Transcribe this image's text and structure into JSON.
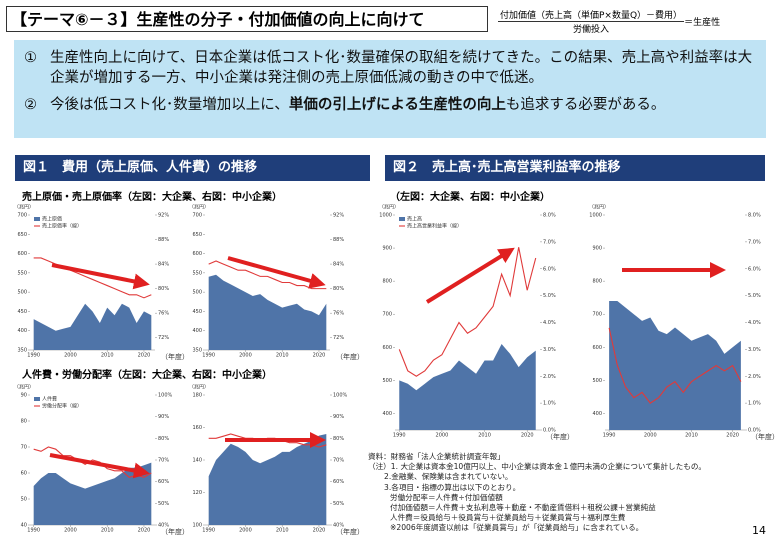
{
  "header": {
    "title": "【テーマ⑥－３】生産性の分子・付加価値の向上に向けて",
    "formula_numerator": "付加価値（売上高（単価P×数量Q）－費用）",
    "formula_denominator": "労働投入",
    "formula_result": "＝生産性"
  },
  "bullets": [
    {
      "marker": "①",
      "text": "生産性向上に向けて、日本企業は低コスト化･数量確保の取組を続けてきた。この結果、売上高や利益率は大企業が増加する一方、中小企業は発注側の売上原価低減の動きの中で低迷。"
    },
    {
      "marker": "②",
      "text_before": "今後は低コスト化･数量増加以上に、",
      "text_bold": "単価の引上げによる生産性の向上",
      "text_after": "も追求する必要がある。"
    }
  ],
  "figure1": {
    "title": "図１　費用（売上原価、人件費）の推移",
    "subtitle_cost": "売上原価・売上原価率（左図：大企業、右図：中小企業）",
    "subtitle_labor": "人件費・労働分配率（左図：大企業、右図：中小企業）"
  },
  "figure2": {
    "title": "図２　売上高･売上高営業利益率の推移",
    "subtitle": "（左図：大企業、右図：中小企業）"
  },
  "notes": [
    "資料：財務省「法人企業統計調査年報」",
    "（注）1. 大企業は資本金10億円以上、中小企業は資本金１億円未満の企業について集計したもの。",
    "2.金融業、保険業は含まれていない。",
    "3.各項目・指標の算出は以下のとおり。",
    "労働分配率＝人件費÷付加価値額",
    "付加価値額＝人件費＋支払利息等＋動産・不動産賃借料＋租税公課＋営業純益",
    "人件費＝役員給与＋役員賞与＋従業員給与＋従業員賞与＋福利厚生費",
    "※2006年度調査以前は「従業員賞与」が「従業員給与」に含まれている。"
  ],
  "page_number": "14",
  "chart_data": [
    {
      "type": "combo",
      "unit": "（兆円）",
      "x_unit": "（年度）",
      "x": [
        1990,
        1992,
        1994,
        1996,
        1998,
        2000,
        2002,
        2004,
        2006,
        2008,
        2010,
        2012,
        2014,
        2016,
        2018,
        2020,
        2022
      ],
      "xlim": [
        1989,
        2023
      ],
      "xticks": [
        1990,
        2000,
        2010,
        2020
      ],
      "ylim": [
        350,
        700
      ],
      "yticks": [
        350,
        400,
        450,
        500,
        550,
        600,
        650,
        700
      ],
      "y2lim": [
        70,
        92
      ],
      "y2ticks": [
        {
          "value": 72,
          "label": "72%"
        },
        {
          "value": 76,
          "label": "76%"
        },
        {
          "value": 80,
          "label": "80%"
        },
        {
          "value": 84,
          "label": "84%"
        },
        {
          "value": 88,
          "label": "88%"
        },
        {
          "value": 92,
          "label": "92%"
        }
      ],
      "series": [
        {
          "name": "売上原価",
          "type": "area",
          "color": "#4f74a8",
          "values": [
            430,
            420,
            410,
            400,
            405,
            410,
            440,
            470,
            450,
            420,
            460,
            440,
            470,
            460,
            420,
            450,
            440
          ]
        },
        {
          "name": "売上原価率（線）",
          "type": "line",
          "axis": "y2",
          "color": "#e03a3a",
          "values": [
            85,
            85,
            84.5,
            84,
            83.5,
            83,
            82.5,
            82,
            81.5,
            81,
            80.5,
            80,
            79.5,
            79,
            79,
            78.5,
            79
          ]
        }
      ]
    },
    {
      "type": "combo",
      "unit": "（兆円）",
      "x_unit": "（年度）",
      "x": [
        1990,
        1992,
        1994,
        1996,
        1998,
        2000,
        2002,
        2004,
        2006,
        2008,
        2010,
        2012,
        2014,
        2016,
        2018,
        2020,
        2022
      ],
      "xlim": [
        1989,
        2023
      ],
      "xticks": [
        1990,
        2000,
        2010,
        2020
      ],
      "ylim": [
        350,
        700
      ],
      "yticks": [
        350,
        400,
        450,
        500,
        550,
        600,
        650,
        700
      ],
      "y2lim": [
        70,
        92
      ],
      "y2ticks": [
        {
          "value": 72,
          "label": "72%"
        },
        {
          "value": 76,
          "label": "76%"
        },
        {
          "value": 80,
          "label": "80%"
        },
        {
          "value": 84,
          "label": "84%"
        },
        {
          "value": 88,
          "label": "88%"
        },
        {
          "value": 92,
          "label": "92%"
        }
      ],
      "series": [
        {
          "type": "area",
          "color": "#4f74a8",
          "values": [
            540,
            545,
            530,
            520,
            510,
            500,
            490,
            495,
            480,
            470,
            460,
            465,
            470,
            455,
            450,
            440,
            470
          ]
        },
        {
          "type": "line",
          "axis": "y2",
          "color": "#e03a3a",
          "values": [
            84,
            84.5,
            84,
            83.5,
            83,
            83,
            82.5,
            82,
            82,
            81.5,
            81,
            81,
            80.5,
            80.5,
            80,
            80,
            80
          ]
        }
      ]
    },
    {
      "type": "combo",
      "unit": "（兆円）",
      "x_unit": "（年度）",
      "x": [
        1990,
        1992,
        1994,
        1996,
        1998,
        2000,
        2002,
        2004,
        2006,
        2008,
        2010,
        2012,
        2014,
        2016,
        2018,
        2020,
        2022
      ],
      "xlim": [
        1989,
        2023
      ],
      "xticks": [
        1990,
        2000,
        2010,
        2020
      ],
      "ylim": [
        40,
        90
      ],
      "yticks": [
        40,
        50,
        60,
        70,
        80,
        90
      ],
      "y2lim": [
        40,
        100
      ],
      "y2ticks": [
        {
          "value": 40,
          "label": "40%"
        },
        {
          "value": 50,
          "label": "50%"
        },
        {
          "value": 60,
          "label": "60%"
        },
        {
          "value": 70,
          "label": "70%"
        },
        {
          "value": 80,
          "label": "80%"
        },
        {
          "value": 90,
          "label": "90%"
        },
        {
          "value": 100,
          "label": "100%"
        }
      ],
      "series": [
        {
          "name": "人件費",
          "type": "area",
          "color": "#4f74a8",
          "values": [
            55,
            58,
            60,
            60,
            58,
            56,
            55,
            54,
            55,
            56,
            57,
            58,
            60,
            62,
            62,
            63,
            64
          ]
        },
        {
          "name": "労働分配率（線）",
          "type": "line",
          "axis": "y2",
          "color": "#e03a3a",
          "values": [
            75,
            74,
            76,
            75,
            72,
            72,
            70,
            68,
            70,
            69,
            66,
            65,
            65,
            62,
            63,
            62,
            64
          ]
        }
      ]
    },
    {
      "type": "combo",
      "unit": "（兆円）",
      "x_unit": "（年度）",
      "x": [
        1990,
        1992,
        1994,
        1996,
        1998,
        2000,
        2002,
        2004,
        2006,
        2008,
        2010,
        2012,
        2014,
        2016,
        2018,
        2020,
        2022
      ],
      "xlim": [
        1989,
        2023
      ],
      "xticks": [
        1990,
        2000,
        2010,
        2020
      ],
      "ylim": [
        100,
        180
      ],
      "yticks": [
        100,
        120,
        140,
        160,
        180
      ],
      "y2lim": [
        40,
        100
      ],
      "y2ticks": [
        {
          "value": 40,
          "label": "40%"
        },
        {
          "value": 50,
          "label": "50%"
        },
        {
          "value": 60,
          "label": "60%"
        },
        {
          "value": 70,
          "label": "70%"
        },
        {
          "value": 80,
          "label": "80%"
        },
        {
          "value": 90,
          "label": "90%"
        },
        {
          "value": 100,
          "label": "100%"
        }
      ],
      "series": [
        {
          "type": "area",
          "color": "#4f74a8",
          "values": [
            130,
            140,
            145,
            150,
            148,
            145,
            140,
            138,
            140,
            142,
            145,
            145,
            148,
            150,
            152,
            155,
            156
          ]
        },
        {
          "type": "line",
          "axis": "y2",
          "color": "#e03a3a",
          "values": [
            80,
            80,
            81,
            82,
            81,
            80,
            80,
            79,
            80,
            80,
            79,
            78,
            78,
            77,
            77,
            76,
            77
          ]
        }
      ]
    },
    {
      "type": "combo",
      "unit": "（兆円）",
      "x_unit": "（年度）",
      "x": [
        1990,
        1992,
        1994,
        1996,
        1998,
        2000,
        2002,
        2004,
        2006,
        2008,
        2010,
        2012,
        2014,
        2016,
        2018,
        2020,
        2022
      ],
      "xlim": [
        1989,
        2023
      ],
      "xticks": [
        1990,
        2000,
        2010,
        2020
      ],
      "ylim": [
        350,
        1000
      ],
      "yticks": [
        400,
        500,
        600,
        700,
        800,
        900,
        1000
      ],
      "y2lim": [
        0,
        8
      ],
      "y2ticks": [
        {
          "value": 0,
          "label": "0.0%"
        },
        {
          "value": 1,
          "label": "1.0%"
        },
        {
          "value": 2,
          "label": "2.0%"
        },
        {
          "value": 3,
          "label": "3.0%"
        },
        {
          "value": 4,
          "label": "4.0%"
        },
        {
          "value": 5,
          "label": "5.0%"
        },
        {
          "value": 6,
          "label": "6.0%"
        },
        {
          "value": 7,
          "label": "7.0%"
        },
        {
          "value": 8,
          "label": "8.0%"
        }
      ],
      "series": [
        {
          "name": "売上高",
          "type": "area",
          "color": "#4f74a8",
          "values": [
            500,
            490,
            470,
            490,
            510,
            520,
            530,
            560,
            540,
            520,
            560,
            560,
            610,
            580,
            540,
            570,
            590
          ]
        },
        {
          "name": "売上高営業利益率（線）",
          "type": "line",
          "axis": "y2",
          "color": "#e03a3a",
          "values": [
            3.0,
            2.2,
            2.0,
            2.2,
            2.6,
            2.8,
            3.4,
            4.0,
            3.6,
            3.8,
            4.2,
            4.6,
            5.8,
            5.0,
            6.8,
            5.2,
            6.4
          ]
        }
      ]
    },
    {
      "type": "combo",
      "unit": "（兆円）",
      "x_unit": "（年度）",
      "x": [
        1990,
        1992,
        1994,
        1996,
        1998,
        2000,
        2002,
        2004,
        2006,
        2008,
        2010,
        2012,
        2014,
        2016,
        2018,
        2020,
        2022
      ],
      "xlim": [
        1989,
        2023
      ],
      "xticks": [
        1990,
        2000,
        2010,
        2020
      ],
      "ylim": [
        350,
        1000
      ],
      "yticks": [
        400,
        500,
        600,
        700,
        800,
        900,
        1000
      ],
      "y2lim": [
        0,
        8
      ],
      "y2ticks": [
        {
          "value": 0,
          "label": "0.0%"
        },
        {
          "value": 1,
          "label": "1.0%"
        },
        {
          "value": 2,
          "label": "2.0%"
        },
        {
          "value": 3,
          "label": "3.0%"
        },
        {
          "value": 4,
          "label": "4.0%"
        },
        {
          "value": 5,
          "label": "5.0%"
        },
        {
          "value": 6,
          "label": "6.0%"
        },
        {
          "value": 7,
          "label": "7.0%"
        },
        {
          "value": 8,
          "label": "8.0%"
        }
      ],
      "series": [
        {
          "type": "area",
          "color": "#4f74a8",
          "values": [
            740,
            740,
            720,
            700,
            680,
            690,
            650,
            640,
            660,
            640,
            620,
            630,
            640,
            620,
            580,
            600,
            620
          ]
        },
        {
          "type": "line",
          "axis": "y2",
          "color": "#e03a3a",
          "values": [
            3.8,
            2.4,
            1.6,
            1.2,
            1.4,
            1.0,
            1.2,
            1.6,
            1.8,
            1.4,
            1.8,
            2.0,
            2.2,
            2.4,
            2.2,
            2.4,
            1.8
          ]
        }
      ]
    }
  ]
}
